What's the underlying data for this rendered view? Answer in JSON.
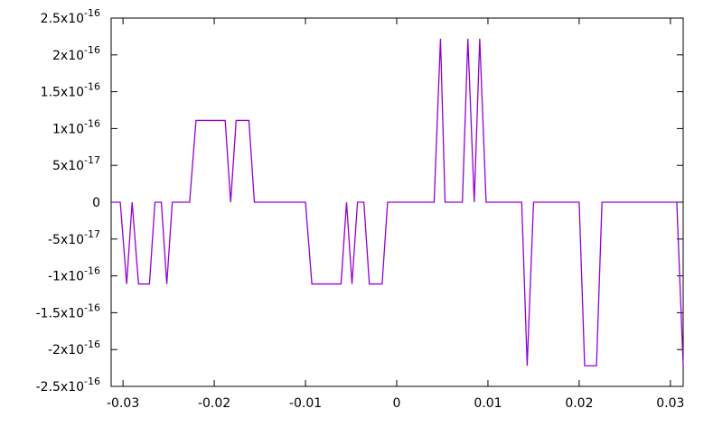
{
  "chart_data": {
    "type": "line",
    "x": [
      -0.0313,
      -0.0303,
      -0.0296,
      -0.029,
      -0.0283,
      -0.0271,
      -0.0265,
      -0.0258,
      -0.0252,
      -0.0246,
      -0.0227,
      -0.022,
      -0.0188,
      -0.0182,
      -0.0176,
      -0.0162,
      -0.0156,
      -0.01,
      -0.0093,
      -0.0061,
      -0.0055,
      -0.0049,
      -0.0043,
      -0.0036,
      -0.003,
      -0.0016,
      -0.001,
      0.0041,
      0.0048,
      0.0053,
      0.0072,
      0.0078,
      0.0085,
      0.0091,
      0.0098,
      0.0137,
      0.0143,
      0.015,
      0.02,
      0.0206,
      0.0219,
      0.0225,
      0.0307,
      0.0314
    ],
    "series": [
      {
        "color": "#9400d3",
        "values": [
          0,
          0,
          -1.11e-16,
          0,
          -1.11e-16,
          -1.11e-16,
          0,
          0,
          -1.11e-16,
          0,
          0,
          1.11e-16,
          1.11e-16,
          0,
          1.11e-16,
          1.11e-16,
          0,
          0,
          -1.11e-16,
          -1.11e-16,
          0,
          -1.11e-16,
          0,
          0,
          -1.11e-16,
          -1.11e-16,
          0,
          0,
          2.22e-16,
          0,
          0,
          2.22e-16,
          0,
          2.22e-16,
          0,
          0,
          -2.22e-16,
          0,
          0,
          -2.22e-16,
          -2.22e-16,
          0,
          0,
          -2.22e-16
        ]
      }
    ],
    "xlim": [
      -0.0313,
      0.0314
    ],
    "xticks": [
      -0.03,
      -0.02,
      -0.01,
      0,
      0.01,
      0.02,
      0.03
    ],
    "ylim": [
      -2.5e-16,
      2.5e-16
    ],
    "yticks": [
      {
        "value": -2.5e-16,
        "label": "-2.5x10",
        "exponent": "-16"
      },
      {
        "value": -2e-16,
        "label": "-2x10",
        "exponent": "-16"
      },
      {
        "value": -1.5e-16,
        "label": "-1.5x10",
        "exponent": "-16"
      },
      {
        "value": -1e-16,
        "label": "-1x10",
        "exponent": "-16"
      },
      {
        "value": -5e-17,
        "label": "-5x10",
        "exponent": "-17"
      },
      0,
      {
        "value": 5e-17,
        "label": "5x10",
        "exponent": "-17"
      },
      {
        "value": 1e-16,
        "label": "1x10",
        "exponent": "-16"
      },
      {
        "value": 1.5e-16,
        "label": "1.5x10",
        "exponent": "-16"
      },
      {
        "value": 2e-16,
        "label": "2x10",
        "exponent": "-16"
      },
      {
        "value": 2.5e-16,
        "label": "2.5x10",
        "exponent": "-16"
      }
    ]
  }
}
